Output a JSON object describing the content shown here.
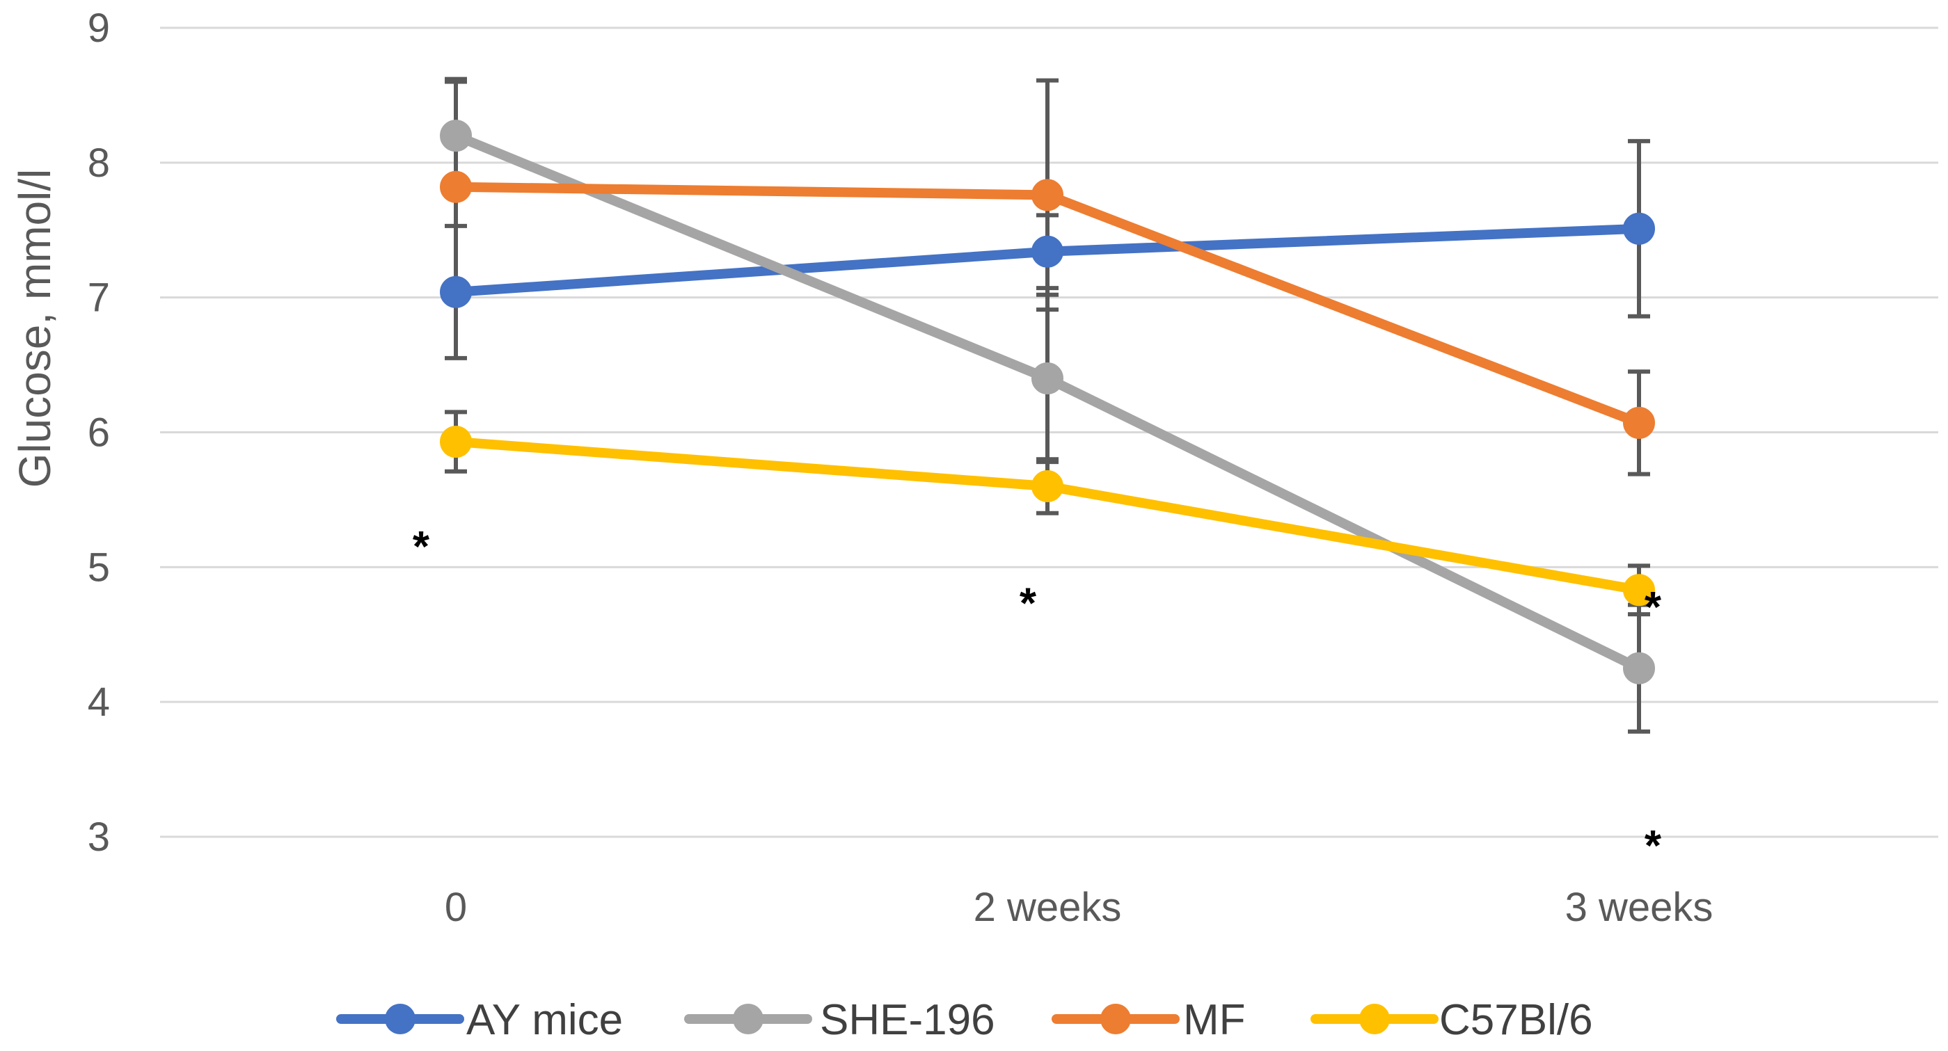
{
  "chart_data": {
    "type": "line",
    "title": "",
    "xlabel": "",
    "ylabel": "Glucose, mmol/l",
    "ylim": [
      3,
      9
    ],
    "yticks": [
      "3",
      "4",
      "5",
      "6",
      "7",
      "8",
      "9"
    ],
    "categories": [
      "0",
      "2 weeks",
      "3 weeks"
    ],
    "grid": true,
    "legend_position": "bottom",
    "series": [
      {
        "name": "AY mice",
        "color": "#4472C4",
        "values": [
          7.04,
          7.34,
          7.51
        ],
        "error": [
          0.49,
          0.27,
          0.65
        ]
      },
      {
        "name": "SHE-196",
        "color": "#A5A5A5",
        "values": [
          8.2,
          6.4,
          4.25
        ],
        "error": [
          0.4,
          0.62,
          0.47
        ]
      },
      {
        "name": "MF",
        "color": "#ED7D31",
        "values": [
          7.82,
          7.76,
          6.07
        ],
        "error": [
          0.8,
          0.85,
          0.38
        ]
      },
      {
        "name": "C57Bl/6",
        "color": "#FFC000",
        "values": [
          5.93,
          5.6,
          4.83
        ],
        "error": [
          0.22,
          0.2,
          0.18
        ]
      }
    ],
    "annotations": [
      {
        "text": "*",
        "category": 0,
        "y": 5.25
      },
      {
        "text": "*",
        "category": 1,
        "y": 4.83
      },
      {
        "text": "*",
        "category": 2,
        "y": 4.8
      },
      {
        "text": "*",
        "category": 2,
        "y": 3.03
      }
    ]
  }
}
